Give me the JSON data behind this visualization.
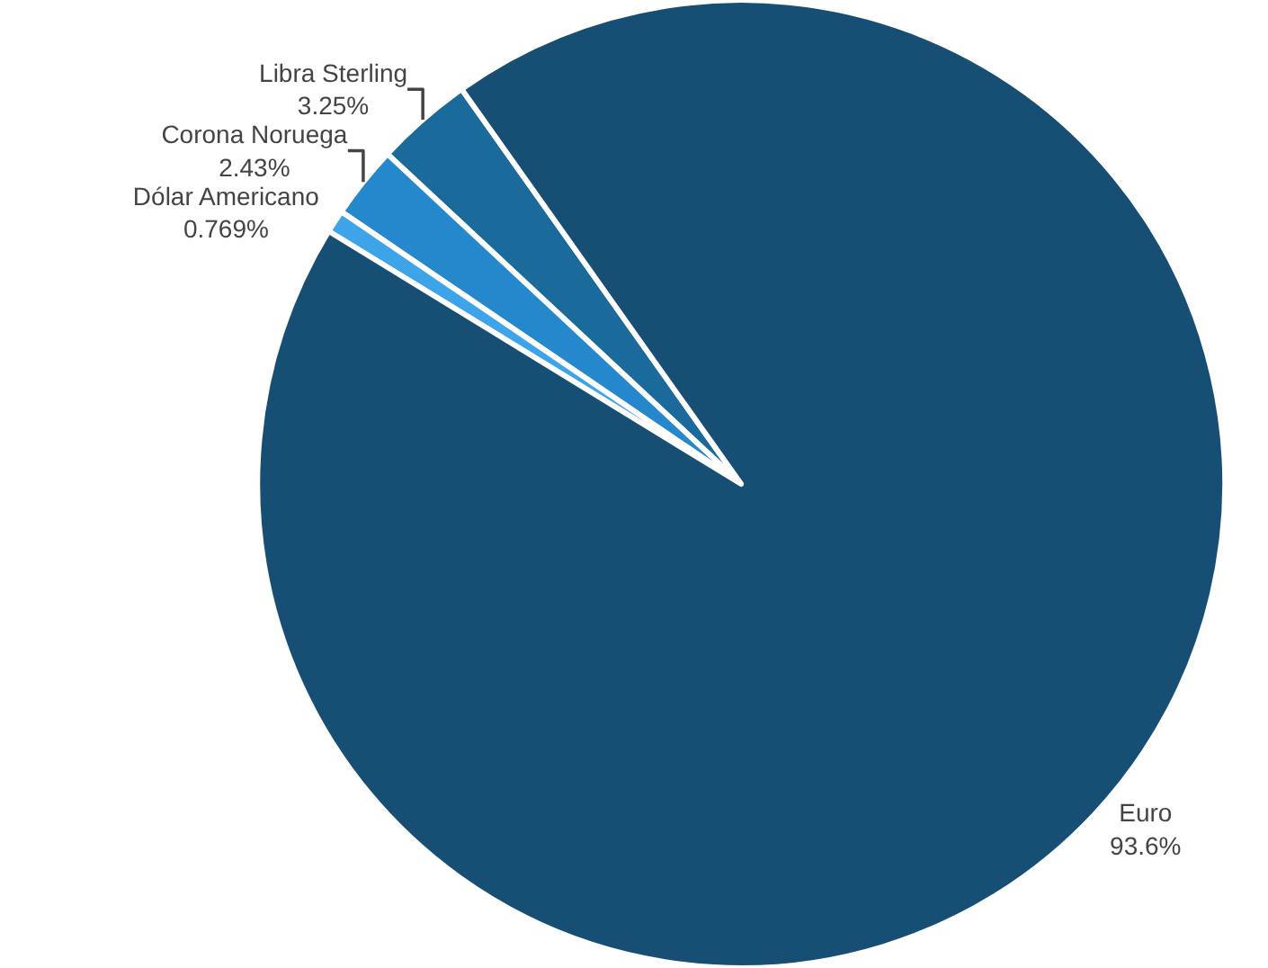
{
  "chart_data": {
    "type": "pie",
    "categories": [
      "Libra Sterling",
      "Corona Noruega",
      "Dólar Americano",
      "Euro"
    ],
    "values": [
      3.25,
      2.43,
      0.769,
      93.6
    ],
    "value_labels": [
      "3.25%",
      "2.43%",
      "0.769%",
      "93.6%"
    ],
    "colors": [
      "#1b6a9c",
      "#2688cc",
      "#3ea4ea",
      "#164f73"
    ]
  }
}
